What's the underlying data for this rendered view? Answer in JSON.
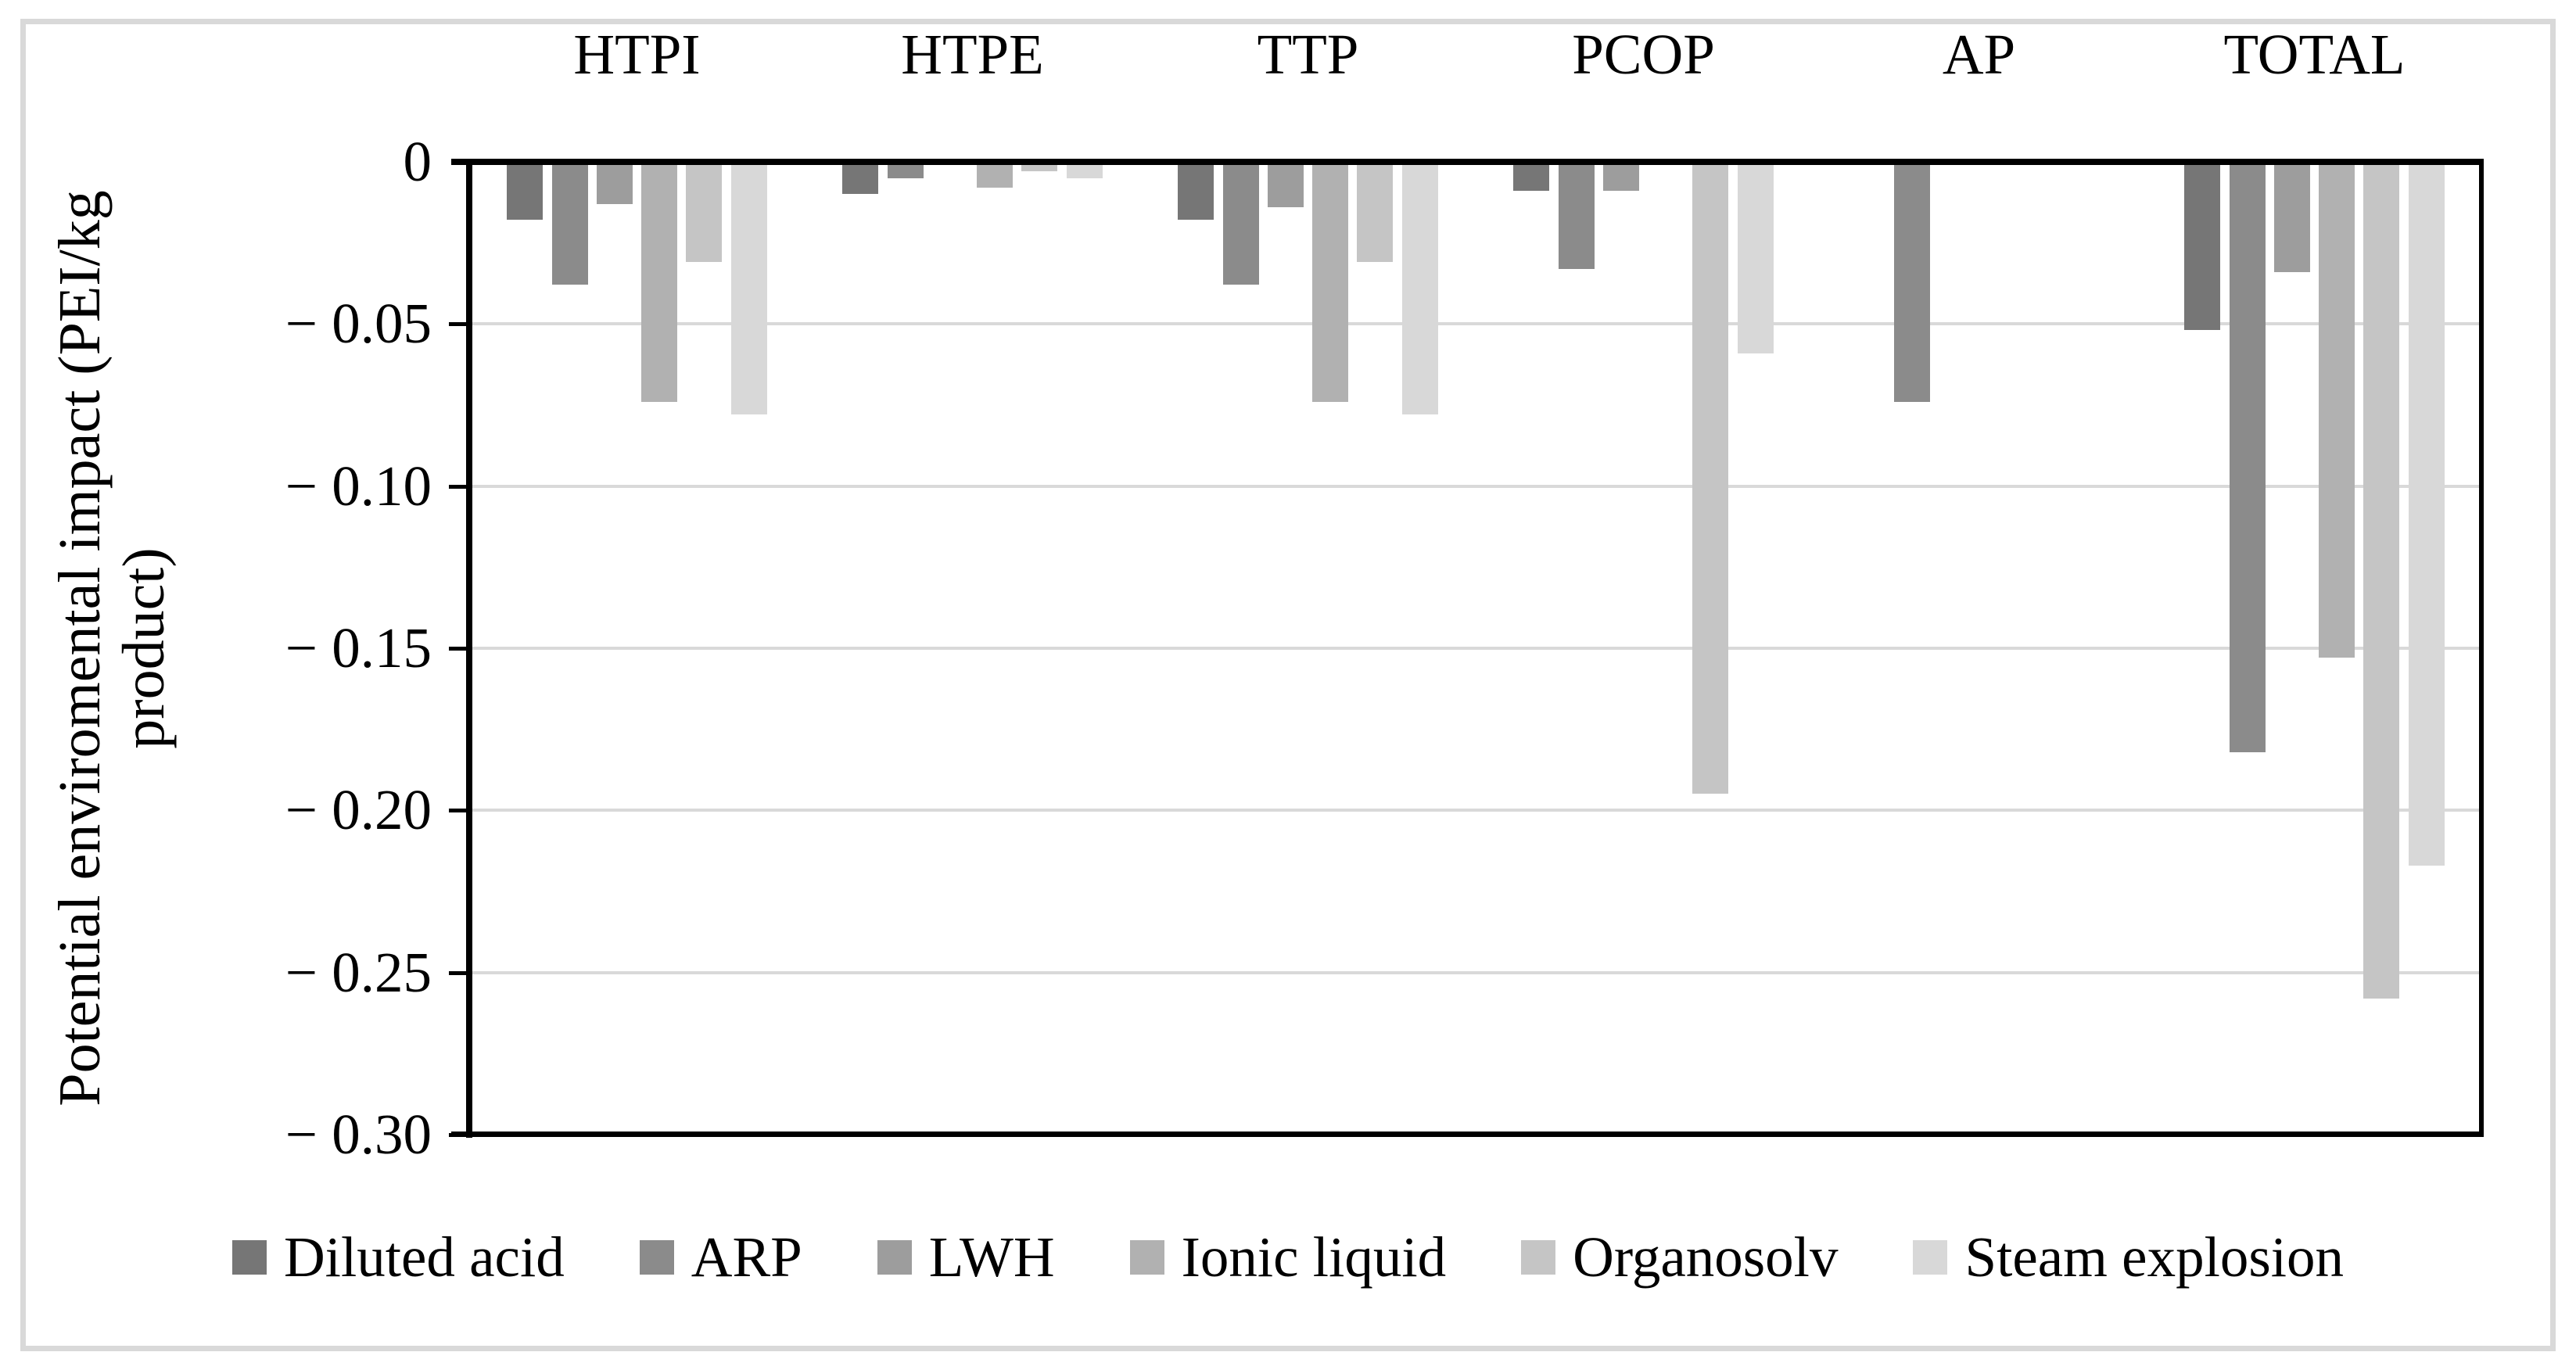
{
  "figure": {
    "background_color": "#ffffff",
    "border_color": "#d9d9d9"
  },
  "chart_data": {
    "type": "bar",
    "title": "",
    "ylabel": "Potential enviromental impact (PEI/kg product)",
    "ylabel_lines": [
      "Potential enviromental impact (PEI/kg",
      "product)"
    ],
    "categories": [
      "HTPI",
      "HTPE",
      "TTP",
      "PCOP",
      "AP",
      "TOTAL"
    ],
    "series": [
      {
        "name": "Diluted acid",
        "color": "#767676",
        "values": [
          -0.017,
          -0.009,
          -0.017,
          -0.008,
          0,
          -0.051
        ]
      },
      {
        "name": "ARP",
        "color": "#8b8b8b",
        "values": [
          -0.037,
          -0.004,
          -0.037,
          -0.032,
          -0.073,
          -0.181
        ]
      },
      {
        "name": "LWH",
        "color": "#9d9d9d",
        "values": [
          -0.012,
          0,
          -0.013,
          -0.008,
          0,
          -0.033
        ]
      },
      {
        "name": "Ionic liquid",
        "color": "#b1b1b1",
        "values": [
          -0.073,
          -0.007,
          -0.073,
          0,
          0,
          -0.152
        ]
      },
      {
        "name": "Organosolv",
        "color": "#c5c5c5",
        "values": [
          -0.03,
          -0.002,
          -0.03,
          -0.194,
          0,
          -0.257
        ]
      },
      {
        "name": "Steam explosion",
        "color": "#d8d8d8",
        "values": [
          -0.077,
          -0.004,
          -0.077,
          -0.058,
          0,
          -0.216
        ]
      }
    ],
    "y_axis": {
      "min": -0.3,
      "max": 0,
      "tick_step": 0.05,
      "tick_labels": [
        "0",
        "− 0.05",
        "− 0.10",
        "− 0.15",
        "− 0.20",
        "− 0.25",
        "− 0.30"
      ]
    },
    "grid": true,
    "gridline_color": "#d9d9d9",
    "axis_color": "#000000",
    "legend_position": "bottom",
    "category_labels_position": "top"
  }
}
